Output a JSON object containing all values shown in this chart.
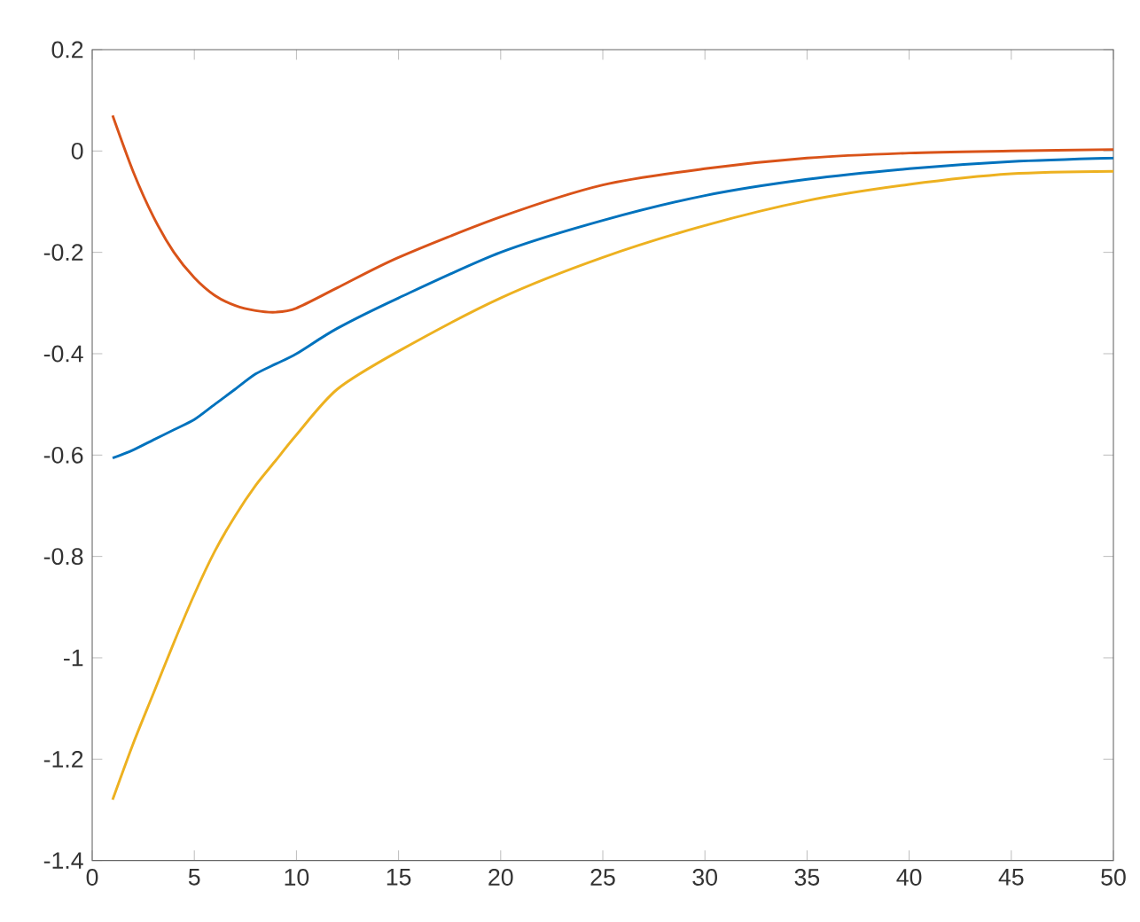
{
  "chart_data": {
    "type": "line",
    "xlim": [
      0,
      50
    ],
    "ylim": [
      -1.4,
      0.2
    ],
    "xticks": [
      0,
      5,
      10,
      15,
      20,
      25,
      30,
      35,
      40,
      45,
      50
    ],
    "yticks": [
      -1.4,
      -1.2,
      -1,
      -0.8,
      -0.6,
      -0.4,
      -0.2,
      0,
      0.2
    ],
    "grid": false,
    "marker": "none",
    "line_style": "solid",
    "x": [
      1,
      2,
      3,
      4,
      5,
      6,
      7,
      8,
      9,
      10,
      12,
      15,
      20,
      25,
      30,
      35,
      40,
      45,
      50
    ],
    "series": [
      {
        "color": "#0072bd",
        "values": [
          -0.606,
          -0.59,
          -0.57,
          -0.55,
          -0.53,
          -0.5,
          -0.47,
          -0.44,
          -0.42,
          -0.4,
          -0.35,
          -0.29,
          -0.2,
          -0.137,
          -0.088,
          -0.056,
          -0.035,
          -0.021,
          -0.014
        ]
      },
      {
        "color": "#d95319",
        "values": [
          0.07,
          -0.04,
          -0.13,
          -0.2,
          -0.25,
          -0.285,
          -0.305,
          -0.315,
          -0.318,
          -0.31,
          -0.27,
          -0.21,
          -0.13,
          -0.067,
          -0.035,
          -0.014,
          -0.004,
          0.0,
          0.003
        ]
      },
      {
        "color": "#edb120",
        "values": [
          -1.28,
          -1.17,
          -1.07,
          -0.97,
          -0.875,
          -0.79,
          -0.72,
          -0.66,
          -0.61,
          -0.56,
          -0.47,
          -0.395,
          -0.29,
          -0.21,
          -0.147,
          -0.098,
          -0.066,
          -0.045,
          -0.04
        ]
      }
    ]
  }
}
